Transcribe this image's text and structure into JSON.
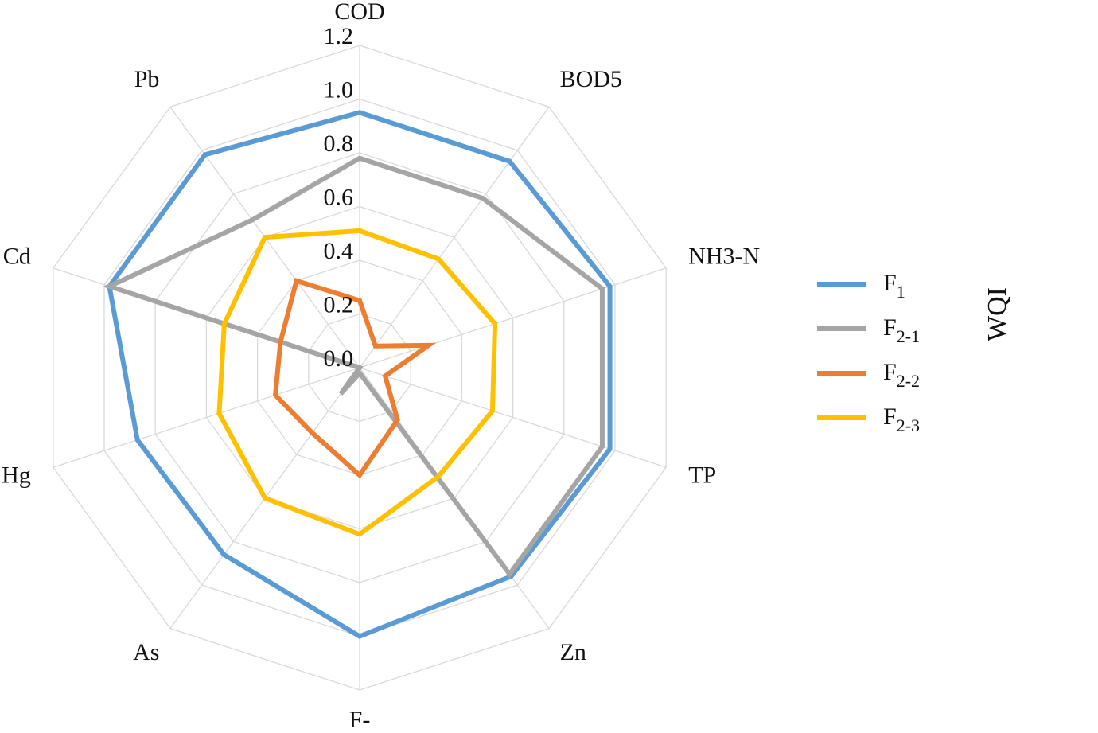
{
  "chart_data": {
    "type": "radar",
    "title": "",
    "side_label": "WQI",
    "categories": [
      "COD",
      "BOD5",
      "NH3-N",
      "TP",
      "Zn",
      "F-",
      "As",
      "Hg",
      "Cd",
      "Pb"
    ],
    "ticks": [
      "0.0",
      "0.2",
      "0.4",
      "0.6",
      "0.8",
      "1.0",
      "1.2"
    ],
    "rlim": [
      0,
      1.2
    ],
    "grid": true,
    "legend_position": "right",
    "series": [
      {
        "name": "F",
        "subscript": "1",
        "color": "#5B9BD5",
        "values": [
          0.95,
          0.95,
          0.98,
          0.98,
          0.96,
          1.0,
          0.86,
          0.87,
          0.98,
          0.98
        ]
      },
      {
        "name": "F",
        "subscript": "2-1",
        "color": "#A5A5A5",
        "values": [
          0.78,
          0.78,
          0.95,
          0.95,
          0.95,
          0.02,
          0.12,
          0.0,
          0.98,
          0.68
        ]
      },
      {
        "name": "F",
        "subscript": "2-2",
        "color": "#ED7D31",
        "values": [
          0.25,
          0.1,
          0.27,
          0.1,
          0.24,
          0.4,
          0.3,
          0.33,
          0.31,
          0.4
        ]
      },
      {
        "name": "F",
        "subscript": "2-3",
        "color": "#FFC000",
        "values": [
          0.51,
          0.5,
          0.53,
          0.52,
          0.5,
          0.62,
          0.6,
          0.55,
          0.53,
          0.6
        ]
      }
    ]
  }
}
